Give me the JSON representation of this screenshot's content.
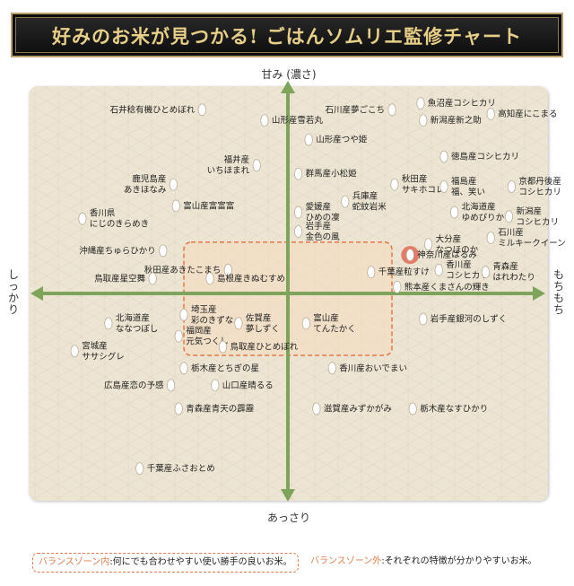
{
  "title": "好みのお米が見つかる! ごはんソムリエ監修チャート",
  "axes": {
    "top": "甘み (濃さ)",
    "bottom": "あっさり",
    "left": "しっかり",
    "right": "もちもち"
  },
  "legend": {
    "inside_key": "バランスゾーン内",
    "inside_text": ":何にでも合わせやすい使い勝手の良いお米。",
    "outside_key": "バランスゾーン外",
    "outside_text": ":それぞれの特徴が分かりやすいお米。"
  },
  "colors": {
    "background": "#ede5d3",
    "axis": "#7ea35a",
    "zone_border": "#e07a4a",
    "zone_fill": "#f3dcc0",
    "highlight": "#e0705c",
    "title_text": "#e7cf88",
    "banner": "#141414"
  },
  "chart_data": {
    "type": "scatter",
    "title": "好みのお米が見つかる! ごはんソムリエ監修チャート",
    "xlabel_left": "しっかり",
    "xlabel_right": "もちもち",
    "ylabel_top": "甘み (濃さ)",
    "ylabel_bottom": "あっさり",
    "xlim": [
      -100,
      100
    ],
    "ylim": [
      -100,
      100
    ],
    "balance_zone": {
      "x": [
        -40,
        40
      ],
      "y": [
        -29,
        24
      ]
    },
    "grid": false,
    "points": [
      {
        "label": "石井稔有機ひとめぼれ",
        "x": -33,
        "y": 86,
        "side": "left"
      },
      {
        "label": "山形産雪若丸",
        "x": -9,
        "y": 81,
        "side": "right"
      },
      {
        "label": "石川産夢ごこち",
        "x": 40,
        "y": 86,
        "side": "left"
      },
      {
        "label": "魚沼産コシヒカリ",
        "x": 51,
        "y": 89,
        "side": "right"
      },
      {
        "label": "新潟産新之助",
        "x": 52,
        "y": 81,
        "side": "right"
      },
      {
        "label": "高知産にこまる",
        "x": 78,
        "y": 84,
        "side": "right"
      },
      {
        "label": "山形産つや姫",
        "x": 8,
        "y": 72,
        "side": "right"
      },
      {
        "label": "徳島産コシヒカリ",
        "x": 60,
        "y": 64,
        "side": "right"
      },
      {
        "label": "福井産\nいちほまれ",
        "x": -12,
        "y": 60,
        "side": "left"
      },
      {
        "label": "鹿児島産\nあきほなみ",
        "x": -44,
        "y": 51,
        "side": "left"
      },
      {
        "label": "群馬産小松姫",
        "x": 4,
        "y": 56,
        "side": "right"
      },
      {
        "label": "秋田産\nサキホコレ",
        "x": 41,
        "y": 51,
        "side": "right"
      },
      {
        "label": "福島産\n福、笑い",
        "x": 60,
        "y": 50,
        "side": "right"
      },
      {
        "label": "京都丹後産\nコシヒカリ",
        "x": 86,
        "y": 50,
        "side": "right"
      },
      {
        "label": "兵庫産\n蛇紋岩米",
        "x": 22,
        "y": 43,
        "side": "right"
      },
      {
        "label": "富山産富富富",
        "x": -43,
        "y": 41,
        "side": "right"
      },
      {
        "label": "香川県\nにじのきらめき",
        "x": -79,
        "y": 35,
        "side": "right"
      },
      {
        "label": "愛媛産\nひめの凜",
        "x": 4,
        "y": 38,
        "side": "right"
      },
      {
        "label": "北海道産\nゆめぴりか",
        "x": 64,
        "y": 38,
        "side": "right"
      },
      {
        "label": "新潟産\nコシヒカリ",
        "x": 85,
        "y": 36,
        "side": "right"
      },
      {
        "label": "岩手産\n金色の風",
        "x": 4,
        "y": 29,
        "side": "right"
      },
      {
        "label": "石川産\nミルキークイーン",
        "x": 78,
        "y": 26,
        "side": "right"
      },
      {
        "label": "大分産\nなつほのか",
        "x": 54,
        "y": 23,
        "side": "right"
      },
      {
        "label": "沖縄産ちゅらひかり",
        "x": -48,
        "y": 20,
        "side": "left"
      },
      {
        "label": "神奈川産はるみ",
        "x": 47,
        "y": 18,
        "side": "right",
        "highlight": true
      },
      {
        "label": "秋田産あきたこまち",
        "x": -23,
        "y": 11,
        "side": "left"
      },
      {
        "label": "香川産\nコシヒカリ",
        "x": 58,
        "y": 11,
        "side": "right"
      },
      {
        "label": "青森産\nはれわたり",
        "x": 76,
        "y": 10,
        "side": "right"
      },
      {
        "label": "千葉産粒すけ",
        "x": 32,
        "y": 10,
        "side": "right"
      },
      {
        "label": "鳥取産星空舞",
        "x": -52,
        "y": 7,
        "side": "left"
      },
      {
        "label": "島根産きぬむすめ",
        "x": -30,
        "y": 7,
        "side": "right"
      },
      {
        "label": "熊本産くまさんの輝き",
        "x": 42,
        "y": 3,
        "side": "right"
      },
      {
        "label": "埼玉産\n彩のきずな",
        "x": -40,
        "y": -10,
        "side": "right"
      },
      {
        "label": "北海道産\nななつぼし",
        "x": -69,
        "y": -14,
        "side": "right"
      },
      {
        "label": "佐賀産\n夢しずく",
        "x": -19,
        "y": -14,
        "side": "right"
      },
      {
        "label": "富山産\nてんたかく",
        "x": 7,
        "y": -14,
        "side": "right"
      },
      {
        "label": "岩手産銀河のしずく",
        "x": 52,
        "y": -12,
        "side": "right"
      },
      {
        "label": "福岡産\n元気つくし",
        "x": -42,
        "y": -20,
        "side": "right"
      },
      {
        "label": "鳥取産ひとめぼれ",
        "x": -25,
        "y": -25,
        "side": "right"
      },
      {
        "label": "宮城産\nササシグレ",
        "x": -82,
        "y": -27,
        "side": "right"
      },
      {
        "label": "栃木産とちぎの星",
        "x": -40,
        "y": -35,
        "side": "right"
      },
      {
        "label": "香川産おいでまい",
        "x": 17,
        "y": -35,
        "side": "right"
      },
      {
        "label": "山口産晴るる",
        "x": -28,
        "y": -43,
        "side": "right"
      },
      {
        "label": "広島産恋の予感",
        "x": -45,
        "y": -43,
        "side": "left"
      },
      {
        "label": "青森産青天の霹靂",
        "x": -42,
        "y": -54,
        "side": "right"
      },
      {
        "label": "滋賀産みずかがみ",
        "x": 11,
        "y": -54,
        "side": "right"
      },
      {
        "label": "栃木産なすひかり",
        "x": 48,
        "y": -54,
        "side": "right"
      },
      {
        "label": "千葉産ふさおとめ",
        "x": -57,
        "y": -82,
        "side": "right"
      }
    ]
  }
}
